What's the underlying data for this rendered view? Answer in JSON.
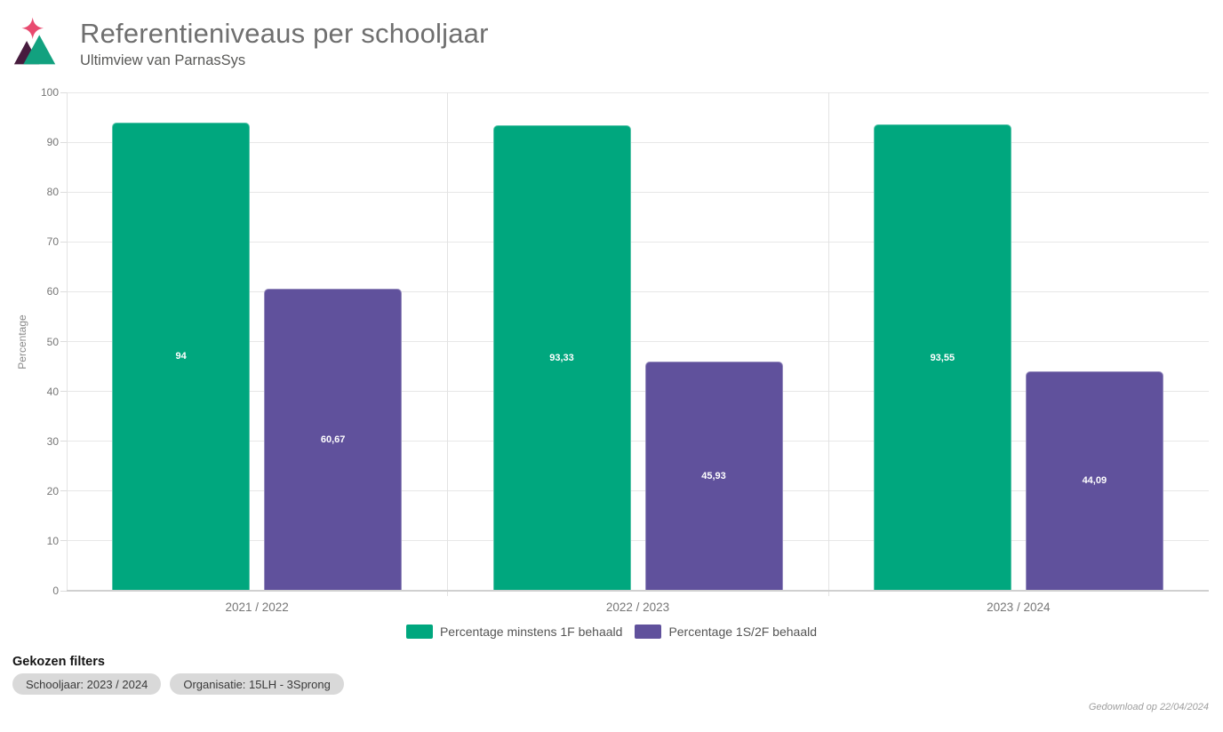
{
  "header": {
    "title": "Referentieniveaus per schooljaar",
    "subtitle": "Ultimview van ParnasSys",
    "logo": {
      "icon": "mountains-and-sparkle-logo",
      "star_color": "#e84a6f",
      "left_triangle_color": "#471c3e",
      "right_triangle_color": "#12a17f"
    }
  },
  "chart_data": {
    "type": "bar",
    "title": "Referentieniveaus per schooljaar",
    "categories": [
      "2021 / 2022",
      "2022 / 2023",
      "2023 / 2024"
    ],
    "series": [
      {
        "name": "Percentage minstens 1F behaald",
        "color": "#00a77e",
        "values": [
          94,
          93.33,
          93.55
        ],
        "labels": [
          "94",
          "93,33",
          "93,55"
        ]
      },
      {
        "name": "Percentage 1S/2F behaald",
        "color": "#60519c",
        "values": [
          60.67,
          45.93,
          44.09
        ],
        "labels": [
          "60,67",
          "45,93",
          "44,09"
        ]
      }
    ],
    "xlabel": "",
    "ylabel": "Percentage",
    "ylim": [
      0,
      100
    ],
    "ytick_step": 10,
    "grid": true,
    "legend_position": "bottom"
  },
  "filters": {
    "title": "Gekozen filters",
    "chips": [
      "Schooljaar: 2023 / 2024",
      "Organisatie: 15LH - 3Sprong"
    ]
  },
  "footer": {
    "downloaded_text": "Gedownload op 22/04/2024"
  }
}
